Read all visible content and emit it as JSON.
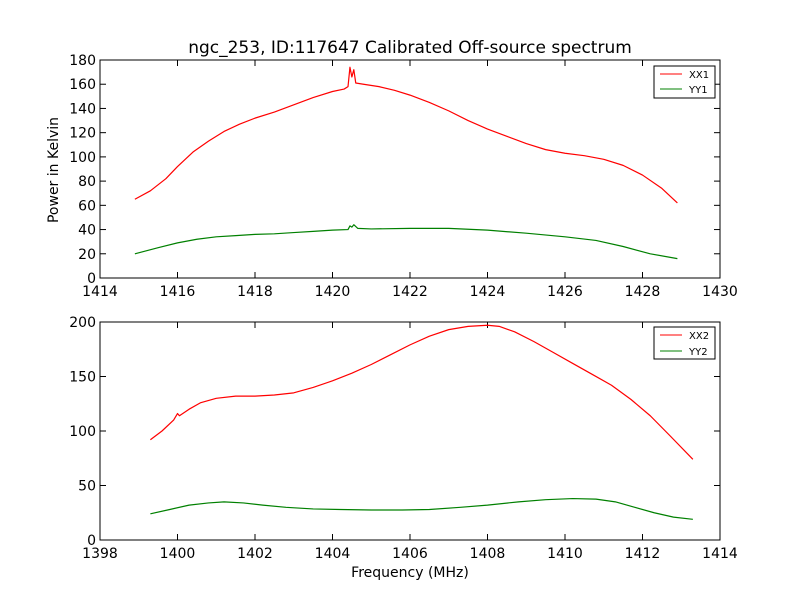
{
  "chart_data": [
    {
      "type": "line",
      "title": "ngc_253, ID:117647 Calibrated Off-source spectrum",
      "xlabel": "",
      "ylabel": "Power in Kelvin",
      "xlim": [
        1414,
        1430
      ],
      "ylim": [
        0,
        180
      ],
      "xticks": [
        1414,
        1416,
        1418,
        1420,
        1422,
        1424,
        1426,
        1428,
        1430
      ],
      "yticks": [
        0,
        20,
        40,
        60,
        80,
        100,
        120,
        140,
        160,
        180
      ],
      "legend_position": "top-right",
      "series": [
        {
          "name": "XX1",
          "color": "#ff0000",
          "points": [
            [
              1414.9,
              65
            ],
            [
              1415.3,
              72
            ],
            [
              1415.7,
              82
            ],
            [
              1416.0,
              92
            ],
            [
              1416.4,
              104
            ],
            [
              1416.8,
              113
            ],
            [
              1417.2,
              121
            ],
            [
              1417.6,
              127
            ],
            [
              1418.0,
              132
            ],
            [
              1418.5,
              137
            ],
            [
              1419.0,
              143
            ],
            [
              1419.5,
              149
            ],
            [
              1420.0,
              154
            ],
            [
              1420.3,
              156
            ],
            [
              1420.4,
              158
            ],
            [
              1420.45,
              174
            ],
            [
              1420.5,
              166
            ],
            [
              1420.55,
              172
            ],
            [
              1420.6,
              161
            ],
            [
              1420.8,
              160
            ],
            [
              1421.2,
              158
            ],
            [
              1421.6,
              155
            ],
            [
              1422.0,
              151
            ],
            [
              1422.5,
              145
            ],
            [
              1423.0,
              138
            ],
            [
              1423.5,
              130
            ],
            [
              1424.0,
              123
            ],
            [
              1424.5,
              117
            ],
            [
              1425.0,
              111
            ],
            [
              1425.5,
              106
            ],
            [
              1426.0,
              103
            ],
            [
              1426.5,
              101
            ],
            [
              1427.0,
              98
            ],
            [
              1427.5,
              93
            ],
            [
              1428.0,
              85
            ],
            [
              1428.5,
              74
            ],
            [
              1428.9,
              62
            ]
          ]
        },
        {
          "name": "YY1",
          "color": "#008000",
          "points": [
            [
              1414.9,
              20
            ],
            [
              1415.5,
              25
            ],
            [
              1416.0,
              29
            ],
            [
              1416.5,
              32
            ],
            [
              1417.0,
              34
            ],
            [
              1417.5,
              35
            ],
            [
              1418.0,
              36
            ],
            [
              1418.5,
              36.5
            ],
            [
              1419.0,
              37.5
            ],
            [
              1419.5,
              38.5
            ],
            [
              1420.0,
              39.5
            ],
            [
              1420.4,
              40
            ],
            [
              1420.45,
              43
            ],
            [
              1420.5,
              42
            ],
            [
              1420.55,
              44
            ],
            [
              1420.65,
              41
            ],
            [
              1421.0,
              40.5
            ],
            [
              1422.0,
              41
            ],
            [
              1423.0,
              41
            ],
            [
              1424.0,
              39.5
            ],
            [
              1425.0,
              37
            ],
            [
              1426.0,
              34
            ],
            [
              1426.8,
              31
            ],
            [
              1427.5,
              26
            ],
            [
              1428.2,
              20
            ],
            [
              1428.9,
              16
            ]
          ]
        }
      ]
    },
    {
      "type": "line",
      "title": "",
      "xlabel": "Frequency (MHz)",
      "ylabel": "",
      "xlim": [
        1398,
        1414
      ],
      "ylim": [
        0,
        200
      ],
      "xticks": [
        1398,
        1400,
        1402,
        1404,
        1406,
        1408,
        1410,
        1412,
        1414
      ],
      "yticks": [
        0,
        50,
        100,
        150,
        200
      ],
      "legend_position": "top-right",
      "series": [
        {
          "name": "XX2",
          "color": "#ff0000",
          "points": [
            [
              1399.3,
              92
            ],
            [
              1399.6,
              100
            ],
            [
              1399.9,
              110
            ],
            [
              1400.0,
              116
            ],
            [
              1400.05,
              114
            ],
            [
              1400.3,
              120
            ],
            [
              1400.6,
              126
            ],
            [
              1401.0,
              130
            ],
            [
              1401.5,
              132
            ],
            [
              1402.0,
              132
            ],
            [
              1402.5,
              133
            ],
            [
              1403.0,
              135
            ],
            [
              1403.5,
              140
            ],
            [
              1404.0,
              146
            ],
            [
              1404.5,
              153
            ],
            [
              1405.0,
              161
            ],
            [
              1405.5,
              170
            ],
            [
              1406.0,
              179
            ],
            [
              1406.5,
              187
            ],
            [
              1407.0,
              193
            ],
            [
              1407.5,
              196
            ],
            [
              1408.0,
              197
            ],
            [
              1408.3,
              196
            ],
            [
              1408.7,
              191
            ],
            [
              1409.2,
              182
            ],
            [
              1409.7,
              172
            ],
            [
              1410.2,
              162
            ],
            [
              1410.7,
              152
            ],
            [
              1411.2,
              142
            ],
            [
              1411.7,
              129
            ],
            [
              1412.2,
              114
            ],
            [
              1412.7,
              96
            ],
            [
              1413.3,
              74
            ]
          ]
        },
        {
          "name": "YY2",
          "color": "#008000",
          "points": [
            [
              1399.3,
              24
            ],
            [
              1399.8,
              28
            ],
            [
              1400.3,
              32
            ],
            [
              1400.8,
              34
            ],
            [
              1401.2,
              35
            ],
            [
              1401.7,
              34
            ],
            [
              1402.2,
              32
            ],
            [
              1402.8,
              30
            ],
            [
              1403.5,
              28.5
            ],
            [
              1404.2,
              28
            ],
            [
              1405.0,
              27.5
            ],
            [
              1405.8,
              27.5
            ],
            [
              1406.5,
              28
            ],
            [
              1407.3,
              30
            ],
            [
              1408.0,
              32
            ],
            [
              1408.8,
              35
            ],
            [
              1409.5,
              37
            ],
            [
              1410.2,
              38
            ],
            [
              1410.8,
              37.5
            ],
            [
              1411.3,
              35
            ],
            [
              1411.8,
              30
            ],
            [
              1412.3,
              25
            ],
            [
              1412.8,
              21
            ],
            [
              1413.3,
              19
            ]
          ]
        }
      ]
    }
  ]
}
